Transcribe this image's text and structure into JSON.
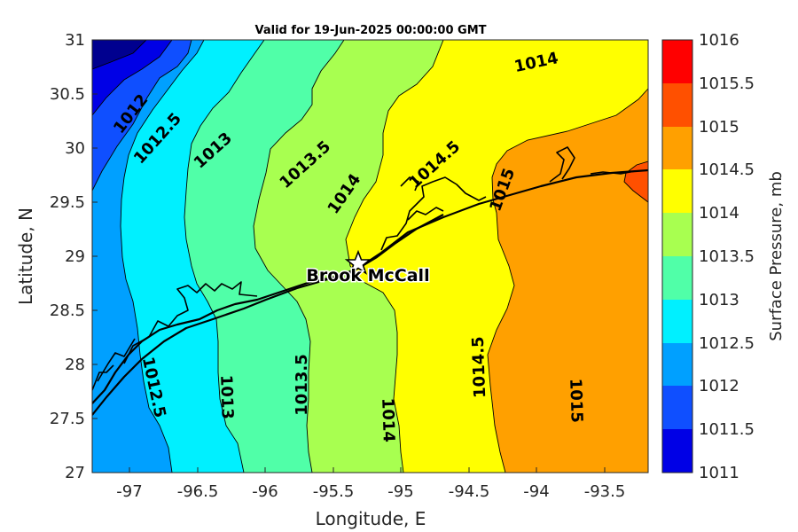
{
  "title": "Valid for 19-Jun-2025 00:00:00 GMT",
  "xlabel": "Longitude, E",
  "ylabel": "Latitude, N",
  "colorbar_label": "Surface Pressure, mb",
  "site_label": "Brook McCall",
  "colors": {
    "1011": "#00008f",
    "1011.5": "#0000e6",
    "1012": "#0f4fff",
    "1012.5": "#00a0ff",
    "1013": "#00f0ff",
    "1013.5": "#50ffa8",
    "1014": "#a8ff50",
    "1014.5": "#ffff00",
    "1015": "#ffa000",
    "1015.5": "#ff5000",
    "1016": "#ff0000"
  },
  "chart_data": {
    "type": "contour-map",
    "variable": "Surface Pressure, mb",
    "xlim": [
      -97.3,
      -93.2
    ],
    "ylim": [
      27,
      31
    ],
    "xticks": [
      "-97",
      "-96.5",
      "-96",
      "-95.5",
      "-95",
      "-94.5",
      "-94",
      "-93.5"
    ],
    "xtick_values": [
      -97,
      -96.5,
      -96,
      -95.5,
      -95,
      -94.5,
      -94,
      -93.5
    ],
    "yticks": [
      "27",
      "27.5",
      "28",
      "28.5",
      "29",
      "29.5",
      "30",
      "30.5",
      "31"
    ],
    "ytick_values": [
      27,
      27.5,
      28,
      28.5,
      29,
      29.5,
      30,
      30.5,
      31
    ],
    "colorbar_ticks": [
      "1011",
      "1011.5",
      "1012",
      "1012.5",
      "1013",
      "1013.5",
      "1014",
      "1014.5",
      "1015",
      "1015.5",
      "1016"
    ],
    "levels": [
      1011,
      1011.5,
      1012,
      1012.5,
      1013,
      1013.5,
      1014,
      1014.5,
      1015,
      1015.5,
      1016
    ],
    "contour_labels": [
      "1012",
      "1012.5",
      "1013",
      "1013.5",
      "1014",
      "1014.5",
      "1015",
      "1014",
      "1012.5",
      "1013",
      "1013.5",
      "1014",
      "1014.5",
      "1015"
    ],
    "site": {
      "name": "Brook McCall",
      "lon": -95.35,
      "lat": 28.95
    },
    "grid": false
  }
}
